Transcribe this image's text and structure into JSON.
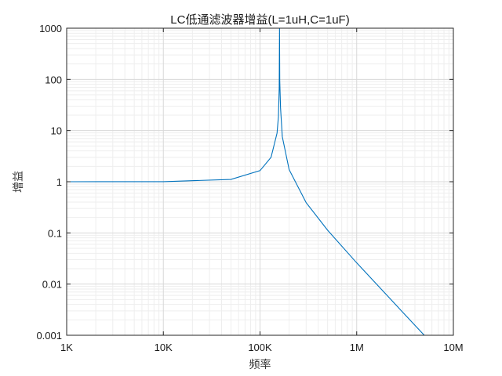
{
  "chart_data": {
    "type": "line",
    "title": "LC低通滤波器增益(L=1uH,C=1uF)",
    "xlabel": "频率",
    "ylabel": "增益",
    "xscale": "log",
    "yscale": "log",
    "xlim": [
      1000,
      10000000
    ],
    "ylim": [
      0.001,
      1000
    ],
    "x_ticks": [
      1000,
      10000,
      100000,
      1000000,
      10000000
    ],
    "x_tick_labels": [
      "1K",
      "10K",
      "100K",
      "1M",
      "10M"
    ],
    "y_ticks": [
      1000,
      100,
      10,
      1,
      0.1,
      0.01,
      0.001
    ],
    "y_tick_labels": [
      "1000",
      "100",
      "10",
      "1",
      "0.1",
      "0.01",
      "0.001"
    ],
    "grid": true,
    "minor_grid": true,
    "series": [
      {
        "color": "#0072BD",
        "x": [
          1000,
          10000,
          50000,
          100000,
          130000,
          150000,
          155000,
          158000,
          159155,
          160000,
          163000,
          170000,
          200000,
          300000,
          500000,
          1000000,
          2000000,
          3000000,
          5000000
        ],
        "y": [
          1.0,
          1.004,
          1.11,
          1.65,
          3.0,
          8.9,
          18.6,
          70.0,
          1000,
          94.0,
          28.0,
          7.6,
          1.73,
          0.39,
          0.113,
          0.026,
          0.0064,
          0.0028,
          0.001
        ]
      }
    ]
  }
}
